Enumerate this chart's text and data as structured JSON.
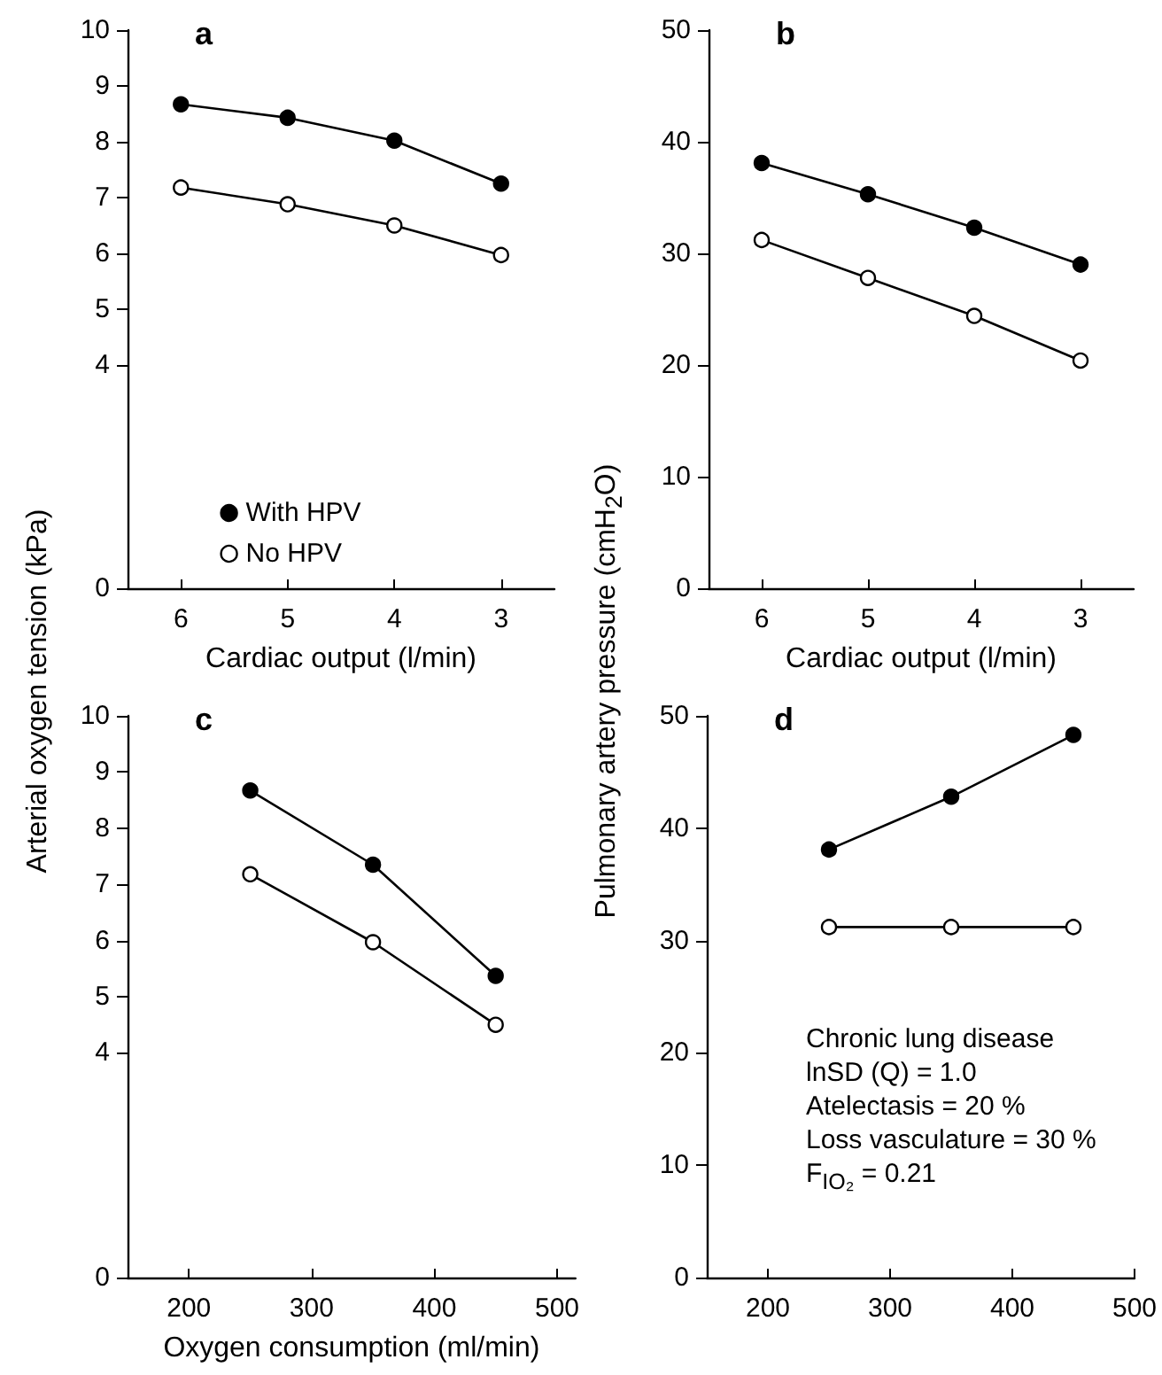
{
  "chart_data": [
    {
      "type": "line",
      "title": "a",
      "ylabel": "Arterial oxygen tension (kPa)",
      "xlabel": "Cardiac output (l/min)",
      "x": [
        6,
        5,
        4,
        3
      ],
      "xlim": [
        6.5,
        2.5
      ],
      "xticks": [
        6,
        5,
        4,
        3
      ],
      "ylim": [
        0,
        10
      ],
      "yticks": [
        0,
        4,
        5,
        6,
        7,
        8,
        9,
        10
      ],
      "marker": "circle",
      "legend": "bottom",
      "grid": false,
      "series": [
        {
          "name": "With HPV",
          "color": "#000000",
          "values": [
            8.67,
            8.43,
            8.02,
            7.25
          ]
        },
        {
          "name": "No HPV",
          "color": "#ffffff",
          "values": [
            7.18,
            6.88,
            6.5,
            5.97
          ]
        }
      ]
    },
    {
      "type": "line",
      "title": "b",
      "ylabel": "Pulmonary artery pressure (cmH$_{2}$O)",
      "xlabel": "Cardiac output (l/min)",
      "x": [
        6,
        5,
        4,
        3
      ],
      "xlim": [
        6.5,
        2.5
      ],
      "xticks": [
        6,
        5,
        4,
        3
      ],
      "ylim": [
        0,
        50
      ],
      "yticks": [
        0,
        10,
        20,
        30,
        40,
        50
      ],
      "marker": "circle",
      "legend": false,
      "grid": false,
      "series": [
        {
          "color": "#000000",
          "values": [
            38.1,
            35.3,
            32.3,
            29.0
          ]
        },
        {
          "color": "#ffffff",
          "values": [
            31.2,
            27.8,
            24.4,
            20.4
          ]
        }
      ]
    },
    {
      "type": "line",
      "title": "c",
      "xlabel": "Oxygen consumption (ml/min)",
      "x": [
        250,
        350,
        450
      ],
      "xlim": [
        150,
        515
      ],
      "xticks": [
        200,
        300,
        400,
        500
      ],
      "ylim": [
        0,
        10
      ],
      "yticks": [
        0,
        4,
        5,
        6,
        7,
        8,
        9,
        10
      ],
      "marker": "circle",
      "legend": false,
      "grid": false,
      "series": [
        {
          "color": "#000000",
          "values": [
            8.67,
            7.35,
            5.37
          ]
        },
        {
          "color": "#ffffff",
          "values": [
            7.18,
            5.97,
            4.5
          ]
        }
      ]
    },
    {
      "type": "line",
      "title": "d",
      "x": [
        250,
        350,
        450
      ],
      "xlim": [
        150,
        500
      ],
      "xticks": [
        200,
        300,
        400,
        500
      ],
      "ylim": [
        0,
        50
      ],
      "yticks": [
        0,
        10,
        20,
        30,
        40,
        50
      ],
      "marker": "circle",
      "legend": false,
      "grid": false,
      "annotations": [
        "Chronic lung disease",
        "lnSD (Q) = 1.0",
        "Atelectasis = 20 %",
        "Loss vasculature = 30 %",
        "F$_{IO₂}$ = 0.21"
      ],
      "series": [
        {
          "color": "#000000",
          "values": [
            38.1,
            42.8,
            48.3
          ]
        },
        {
          "color": "#ffffff",
          "values": [
            31.2,
            31.2,
            31.2
          ]
        }
      ]
    }
  ]
}
